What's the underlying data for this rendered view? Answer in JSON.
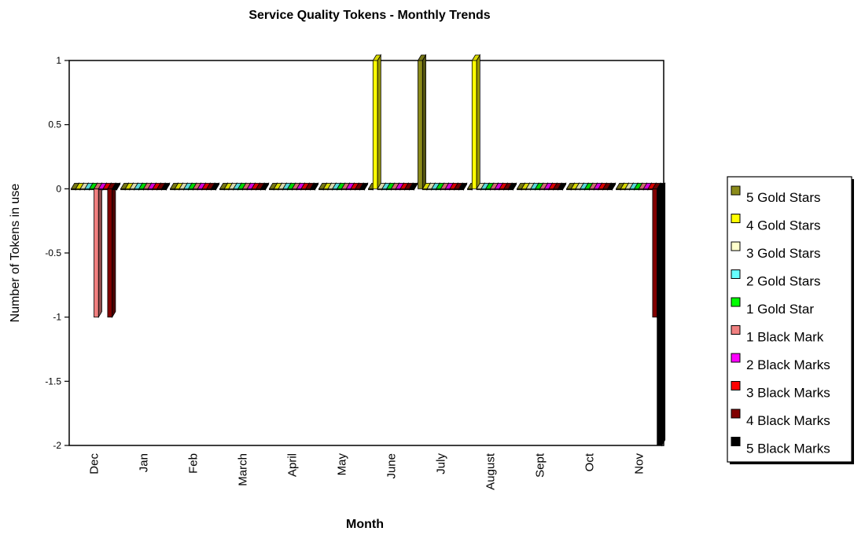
{
  "chart_data": {
    "type": "bar",
    "title": "Service Quality Tokens - Monthly Trends",
    "xlabel": "Month",
    "ylabel": "Number of Tokens in use",
    "ylim": [
      -2,
      1
    ],
    "yticks": [
      {
        "value": 1,
        "label": "1"
      },
      {
        "value": 0.5,
        "label": "0.5"
      },
      {
        "value": 0,
        "label": "0"
      },
      {
        "value": -0.5,
        "label": "-0.5"
      },
      {
        "value": -1,
        "label": "-1"
      },
      {
        "value": -1.5,
        "label": "-1.5"
      },
      {
        "value": -2,
        "label": "-2"
      }
    ],
    "categories": [
      "Dec",
      "Jan",
      "Feb",
      "March",
      "April",
      "May",
      "June",
      "July",
      "August",
      "Sept",
      "Oct",
      "Nov"
    ],
    "legend_position": "right",
    "series": [
      {
        "name": "5 Gold Stars",
        "color": "#8b8b1a",
        "values": [
          0,
          0,
          0,
          0,
          0,
          0,
          0,
          1,
          0,
          0,
          0,
          0
        ]
      },
      {
        "name": "4 Gold Stars",
        "color": "#ffff00",
        "values": [
          0,
          0,
          0,
          0,
          0,
          0,
          1,
          0,
          1,
          0,
          0,
          0
        ]
      },
      {
        "name": "3 Gold Stars",
        "color": "#ffffcc",
        "values": [
          0,
          0,
          0,
          0,
          0,
          0,
          0,
          0,
          0,
          0,
          0,
          0
        ]
      },
      {
        "name": "2 Gold Stars",
        "color": "#66ffff",
        "values": [
          0,
          0,
          0,
          0,
          0,
          0,
          0,
          0,
          0,
          0,
          0,
          0
        ]
      },
      {
        "name": "1 Gold Star",
        "color": "#00ff00",
        "values": [
          0,
          0,
          0,
          0,
          0,
          0,
          0,
          0,
          0,
          0,
          0,
          0
        ]
      },
      {
        "name": "1 Black Mark",
        "color": "#f08080",
        "values": [
          -1,
          0,
          0,
          0,
          0,
          0,
          0,
          0,
          0,
          0,
          0,
          0
        ]
      },
      {
        "name": "2 Black Marks",
        "color": "#ff00ff",
        "values": [
          0,
          0,
          0,
          0,
          0,
          0,
          0,
          0,
          0,
          0,
          0,
          0
        ]
      },
      {
        "name": "3 Black Marks",
        "color": "#ff0000",
        "values": [
          0,
          0,
          0,
          0,
          0,
          0,
          0,
          0,
          0,
          0,
          0,
          0
        ]
      },
      {
        "name": "4 Black Marks",
        "color": "#800000",
        "values": [
          -1,
          0,
          0,
          0,
          0,
          0,
          0,
          0,
          0,
          0,
          0,
          -1
        ]
      },
      {
        "name": "5 Black Marks",
        "color": "#000000",
        "values": [
          0,
          0,
          0,
          0,
          0,
          0,
          0,
          0,
          0,
          0,
          0,
          -2
        ]
      }
    ]
  }
}
